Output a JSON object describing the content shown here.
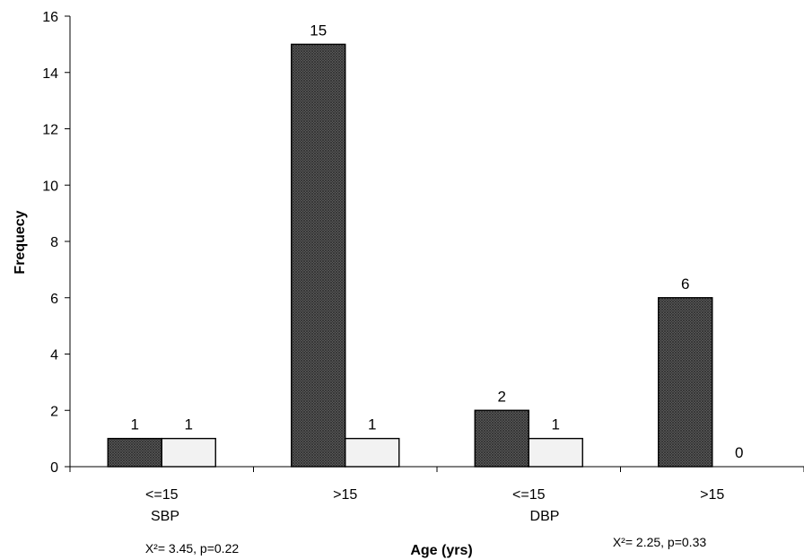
{
  "chart_data": {
    "type": "bar",
    "xlabel": "Age (yrs)",
    "ylabel": "Frequecy",
    "ylim": [
      0,
      16
    ],
    "y_ticks": [
      0,
      2,
      4,
      6,
      8,
      10,
      12,
      14,
      16
    ],
    "grid": false,
    "legend": "none",
    "categories": [
      "<=15",
      ">15",
      "<=15",
      ">15"
    ],
    "groups": [
      {
        "label": "SBP",
        "categories": [
          "<=15",
          ">15"
        ],
        "stat": "X²= 3.45, p=0.22"
      },
      {
        "label": "DBP",
        "categories": [
          "<=15",
          ">15"
        ],
        "stat": "X²= 2.25, p=0.33"
      }
    ],
    "series": [
      {
        "values": [
          1,
          15,
          2,
          6
        ],
        "data_labels": [
          "1",
          "15",
          "2",
          "6"
        ],
        "color": "#5a5a5a",
        "pattern": "crosshatch"
      },
      {
        "values": [
          1,
          1,
          1,
          0
        ],
        "data_labels": [
          "1",
          "1",
          "1",
          "0"
        ],
        "color": "#f2f2f2"
      }
    ]
  }
}
